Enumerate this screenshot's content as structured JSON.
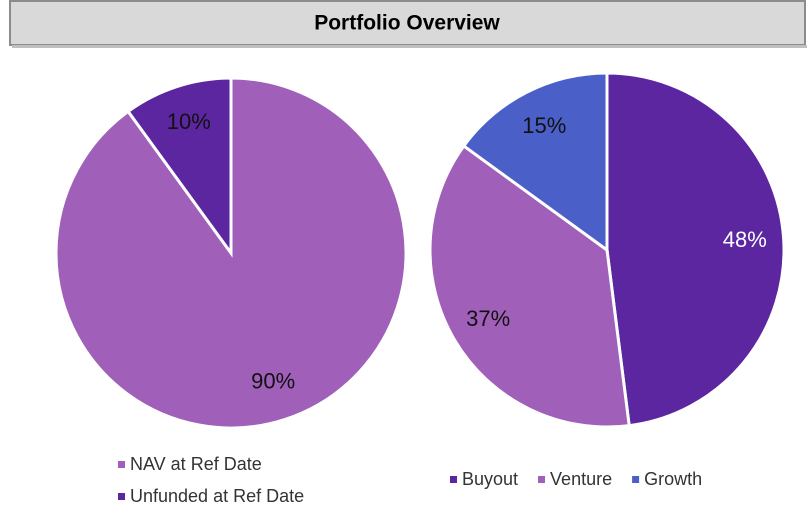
{
  "header": {
    "title": "Portfolio Overview"
  },
  "chart_data": [
    {
      "type": "pie",
      "categories": [
        "NAV at Ref Date",
        "Unfunded at Ref Date"
      ],
      "values": [
        90,
        10
      ],
      "value_labels": [
        "90%",
        "10%"
      ],
      "colors": [
        "#a05fb8",
        "#5b26a0"
      ],
      "label_colors": [
        "#111111",
        "#111111"
      ],
      "legend": "bottom-vertical"
    },
    {
      "type": "pie",
      "categories": [
        "Buyout",
        "Venture",
        "Growth"
      ],
      "values": [
        48,
        37,
        15
      ],
      "value_labels": [
        "48%",
        "37%",
        "15%"
      ],
      "colors": [
        "#5b26a0",
        "#a05fb8",
        "#4a5fc8"
      ],
      "label_colors": [
        "#ffffff",
        "#111111",
        "#111111"
      ],
      "legend": "bottom-horizontal"
    }
  ]
}
